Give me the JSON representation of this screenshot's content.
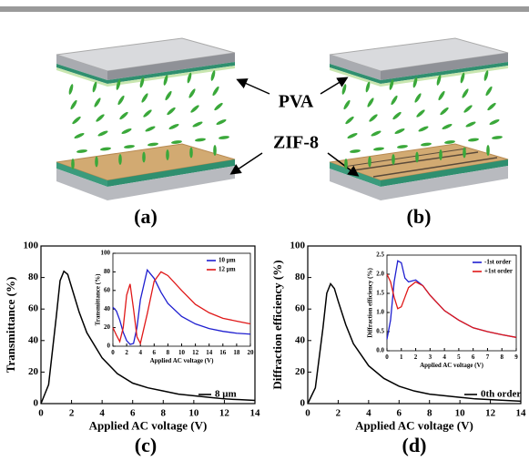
{
  "panel_labels": [
    "(a)",
    "(b)",
    "(c)",
    "(d)"
  ],
  "schematic_labels": [
    "PVA",
    "ZIF-8"
  ],
  "chart_data": [
    {
      "type": "line",
      "xlabel": "Applied AC voltage (V)",
      "ylabel": "Transmittance (%)",
      "x": [
        0,
        0.5,
        1,
        1.25,
        1.5,
        1.75,
        2,
        2.5,
        3,
        4,
        5,
        6,
        7,
        8,
        9,
        10,
        11,
        12,
        13,
        14
      ],
      "series": [
        {
          "name": "8 μm",
          "color": "#000000",
          "values": [
            0,
            12,
            55,
            78,
            84,
            82,
            74,
            58,
            45,
            29,
            19,
            13,
            10,
            8,
            6,
            5,
            4,
            3,
            2.5,
            2
          ]
        }
      ],
      "xlim": [
        0,
        14
      ],
      "xticks": [
        0,
        2,
        4,
        6,
        8,
        10,
        12,
        14
      ],
      "ylim": [
        0,
        100
      ],
      "yticks": [
        0,
        20,
        40,
        60,
        80,
        100
      ],
      "legend": "lower right"
    },
    {
      "type": "line",
      "xlabel": "Applied AC voltage (V)",
      "ylabel": "Transmittance (%)",
      "x": [
        0,
        0.5,
        1,
        1.5,
        2,
        2.5,
        3,
        3.5,
        4,
        5,
        6,
        7,
        8,
        10,
        12,
        14,
        16,
        18,
        20
      ],
      "series": [
        {
          "name": "10 μm",
          "color": "#1f1fd0",
          "values": [
            42,
            38,
            28,
            15,
            6,
            2,
            3,
            20,
            50,
            82,
            73,
            58,
            46,
            32,
            24,
            19,
            16,
            14,
            13
          ]
        },
        {
          "name": "12 μm",
          "color": "#e01818",
          "values": [
            20,
            12,
            5,
            20,
            55,
            67,
            40,
            10,
            3,
            35,
            70,
            80,
            76,
            60,
            45,
            36,
            30,
            27,
            24
          ]
        }
      ],
      "xlim": [
        0,
        20
      ],
      "xticks": [
        0,
        2,
        4,
        6,
        8,
        10,
        12,
        14,
        16,
        18,
        20
      ],
      "ylim": [
        0,
        100
      ],
      "yticks": [
        0,
        20,
        40,
        60,
        80,
        100
      ],
      "legend": "upper right"
    },
    {
      "type": "line",
      "xlabel": "Applied AC voltage (V)",
      "ylabel": "Diffraction efficiency (%)",
      "x": [
        0,
        0.5,
        1,
        1.25,
        1.5,
        1.75,
        2,
        2.5,
        3,
        4,
        5,
        6,
        7,
        8,
        9,
        10,
        11,
        12,
        13,
        14
      ],
      "series": [
        {
          "name": "0th order",
          "color": "#000000",
          "values": [
            0,
            10,
            48,
            70,
            76,
            73,
            65,
            50,
            38,
            24,
            16,
            11,
            8,
            6,
            5,
            4,
            3,
            2.5,
            2,
            1.5
          ]
        }
      ],
      "xlim": [
        0,
        14
      ],
      "xticks": [
        0,
        2,
        4,
        6,
        8,
        10,
        12,
        14
      ],
      "ylim": [
        0,
        100
      ],
      "yticks": [
        0,
        20,
        40,
        60,
        80,
        100
      ],
      "legend": "lower right"
    },
    {
      "type": "line",
      "xlabel": "Applied AC voltage (V)",
      "ylabel": "Diffraction efficiency (%)",
      "x": [
        0,
        0.25,
        0.5,
        0.75,
        1,
        1.25,
        1.5,
        2,
        2.5,
        3,
        4,
        5,
        6,
        7,
        8,
        9
      ],
      "series": [
        {
          "name": "-1st order",
          "color": "#1f1fd0",
          "values": [
            0.3,
            0.8,
            1.8,
            2.35,
            2.3,
            1.9,
            1.8,
            1.85,
            1.7,
            1.45,
            1.05,
            0.8,
            0.6,
            0.5,
            0.42,
            0.35
          ]
        },
        {
          "name": "+1st order",
          "color": "#e01818",
          "values": [
            2.0,
            1.8,
            1.4,
            1.1,
            1.15,
            1.4,
            1.65,
            1.8,
            1.7,
            1.45,
            1.05,
            0.8,
            0.6,
            0.5,
            0.42,
            0.35
          ]
        }
      ],
      "xlim": [
        0,
        9
      ],
      "xticks": [
        0,
        1,
        2,
        3,
        4,
        5,
        6,
        7,
        8,
        9
      ],
      "ylim": [
        0,
        2.5
      ],
      "yticks": [
        {
          "value": 0,
          "label": "0.0"
        },
        0.5,
        {
          "value": 1,
          "label": "1.0"
        },
        1.5,
        {
          "value": 2,
          "label": "2.0"
        },
        2.5
      ],
      "legend": "upper right"
    }
  ]
}
